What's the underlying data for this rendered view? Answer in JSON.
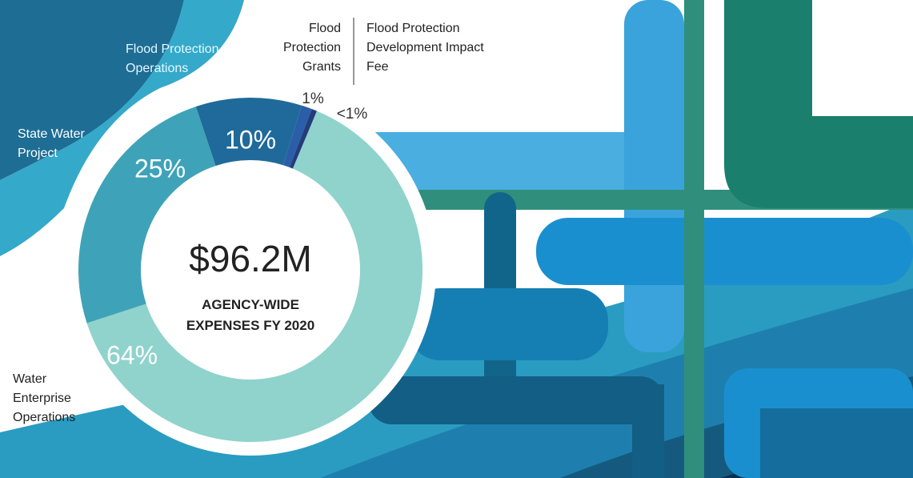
{
  "chart_data": {
    "type": "donut",
    "title": "AGENCY-WIDE EXPENSES FY 2020",
    "center_label": "$96.2M",
    "categories": [
      "Water Enterprise Operations",
      "State Water Project",
      "Flood Protection Operations",
      "Flood Protection Grants",
      "Flood Protection Development Impact Fee"
    ],
    "values": [
      64,
      25,
      10,
      1,
      0.5
    ],
    "value_labels": [
      "64%",
      "25%",
      "10%",
      "1%",
      "<1%"
    ],
    "colors": [
      "#8fd3cc",
      "#3ea3b8",
      "#1f6a9a",
      "#2a5ea8",
      "#243c7a"
    ]
  }
}
